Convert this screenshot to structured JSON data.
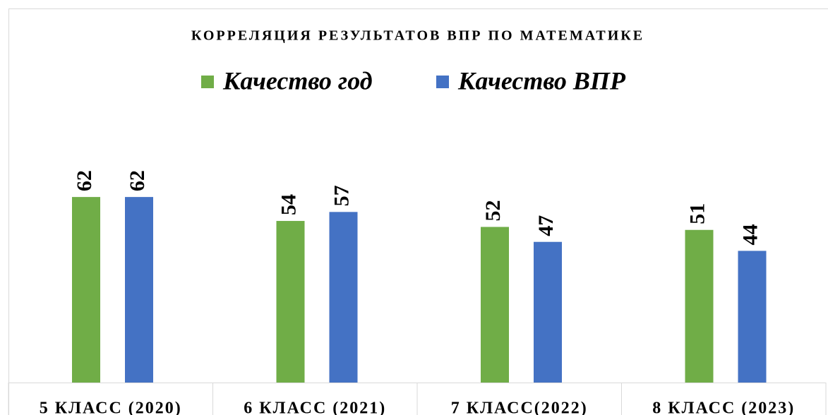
{
  "chart_data": {
    "type": "bar",
    "title": "КОРРЕЛЯЦИЯ РЕЗУЛЬТАТОВ ВПР ПО МАТЕМАТИКЕ",
    "categories": [
      "5 КЛАСС (2020)",
      "6 КЛАСС (2021)",
      "7 КЛАСС(2022)",
      "8 КЛАСС (2023)"
    ],
    "series": [
      {
        "name": "Качество год",
        "color": "#70ad47",
        "values": [
          62,
          54,
          52,
          51
        ]
      },
      {
        "name": "Качество ВПР",
        "color": "#4472c4",
        "values": [
          62,
          57,
          47,
          44
        ]
      }
    ],
    "ylim": [
      0,
      100
    ]
  }
}
